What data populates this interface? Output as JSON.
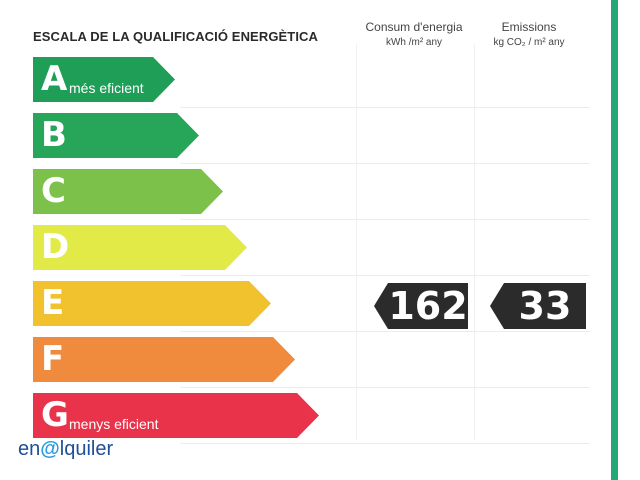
{
  "header": {
    "title": "ESCALA DE LA QUALIFICACIÓ ENERGÈTICA",
    "energy_col": {
      "title": "Consum d'energia",
      "unit": "kWh /m² any"
    },
    "emissions_col": {
      "title": "Emissions",
      "unit": "kg CO₂ / m² any"
    }
  },
  "scale": [
    {
      "letter": "A",
      "label": "més eficient",
      "color": "#1e9e56"
    },
    {
      "letter": "B",
      "label": "",
      "color": "#27a65a"
    },
    {
      "letter": "C",
      "label": "",
      "color": "#7cc24a"
    },
    {
      "letter": "D",
      "label": "",
      "color": "#e2ea48"
    },
    {
      "letter": "E",
      "label": "",
      "color": "#f2c12e"
    },
    {
      "letter": "F",
      "label": "",
      "color": "#f08a3c"
    },
    {
      "letter": "G",
      "label": "menys eficient",
      "color": "#e9334a"
    }
  ],
  "rating": {
    "class": "E",
    "energy_value": "162",
    "emissions_value": "33",
    "arrow_color": "#2b2b2b"
  },
  "branding": {
    "prefix": "en",
    "mark": "@",
    "suffix": "lquiler"
  }
}
